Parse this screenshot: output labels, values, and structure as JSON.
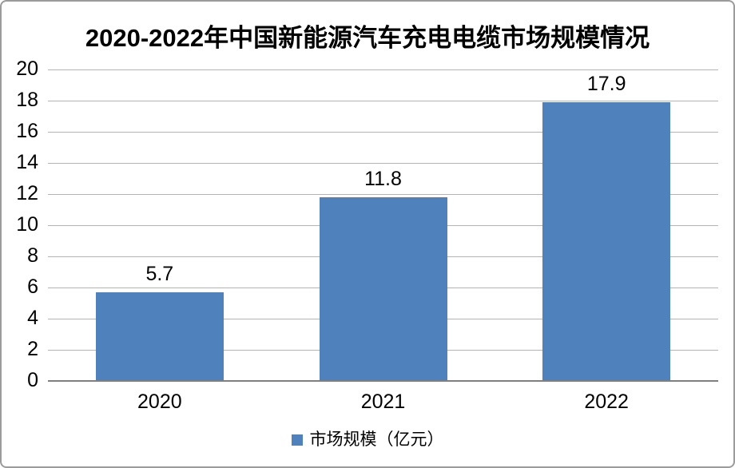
{
  "chart_data": {
    "type": "bar",
    "title": "2020-2022年中国新能源汽车充电电缆市场规模情况",
    "categories": [
      "2020",
      "2021",
      "2022"
    ],
    "series": [
      {
        "name": "市场规模（亿元）",
        "values": [
          5.7,
          11.8,
          17.9
        ]
      }
    ],
    "data_labels": [
      "5.7",
      "11.8",
      "17.9"
    ],
    "yticks": [
      0,
      2,
      4,
      6,
      8,
      10,
      12,
      14,
      16,
      18,
      20
    ],
    "ylim": [
      0,
      20
    ],
    "xlabel": "",
    "ylabel": "",
    "grid": true,
    "legend_position": "bottom",
    "colors": {
      "bar": "#4F81BD",
      "gridline": "#b3b3b3",
      "axis": "#7f7f7f",
      "text": "#000000",
      "border": "#9b9b9b"
    }
  }
}
